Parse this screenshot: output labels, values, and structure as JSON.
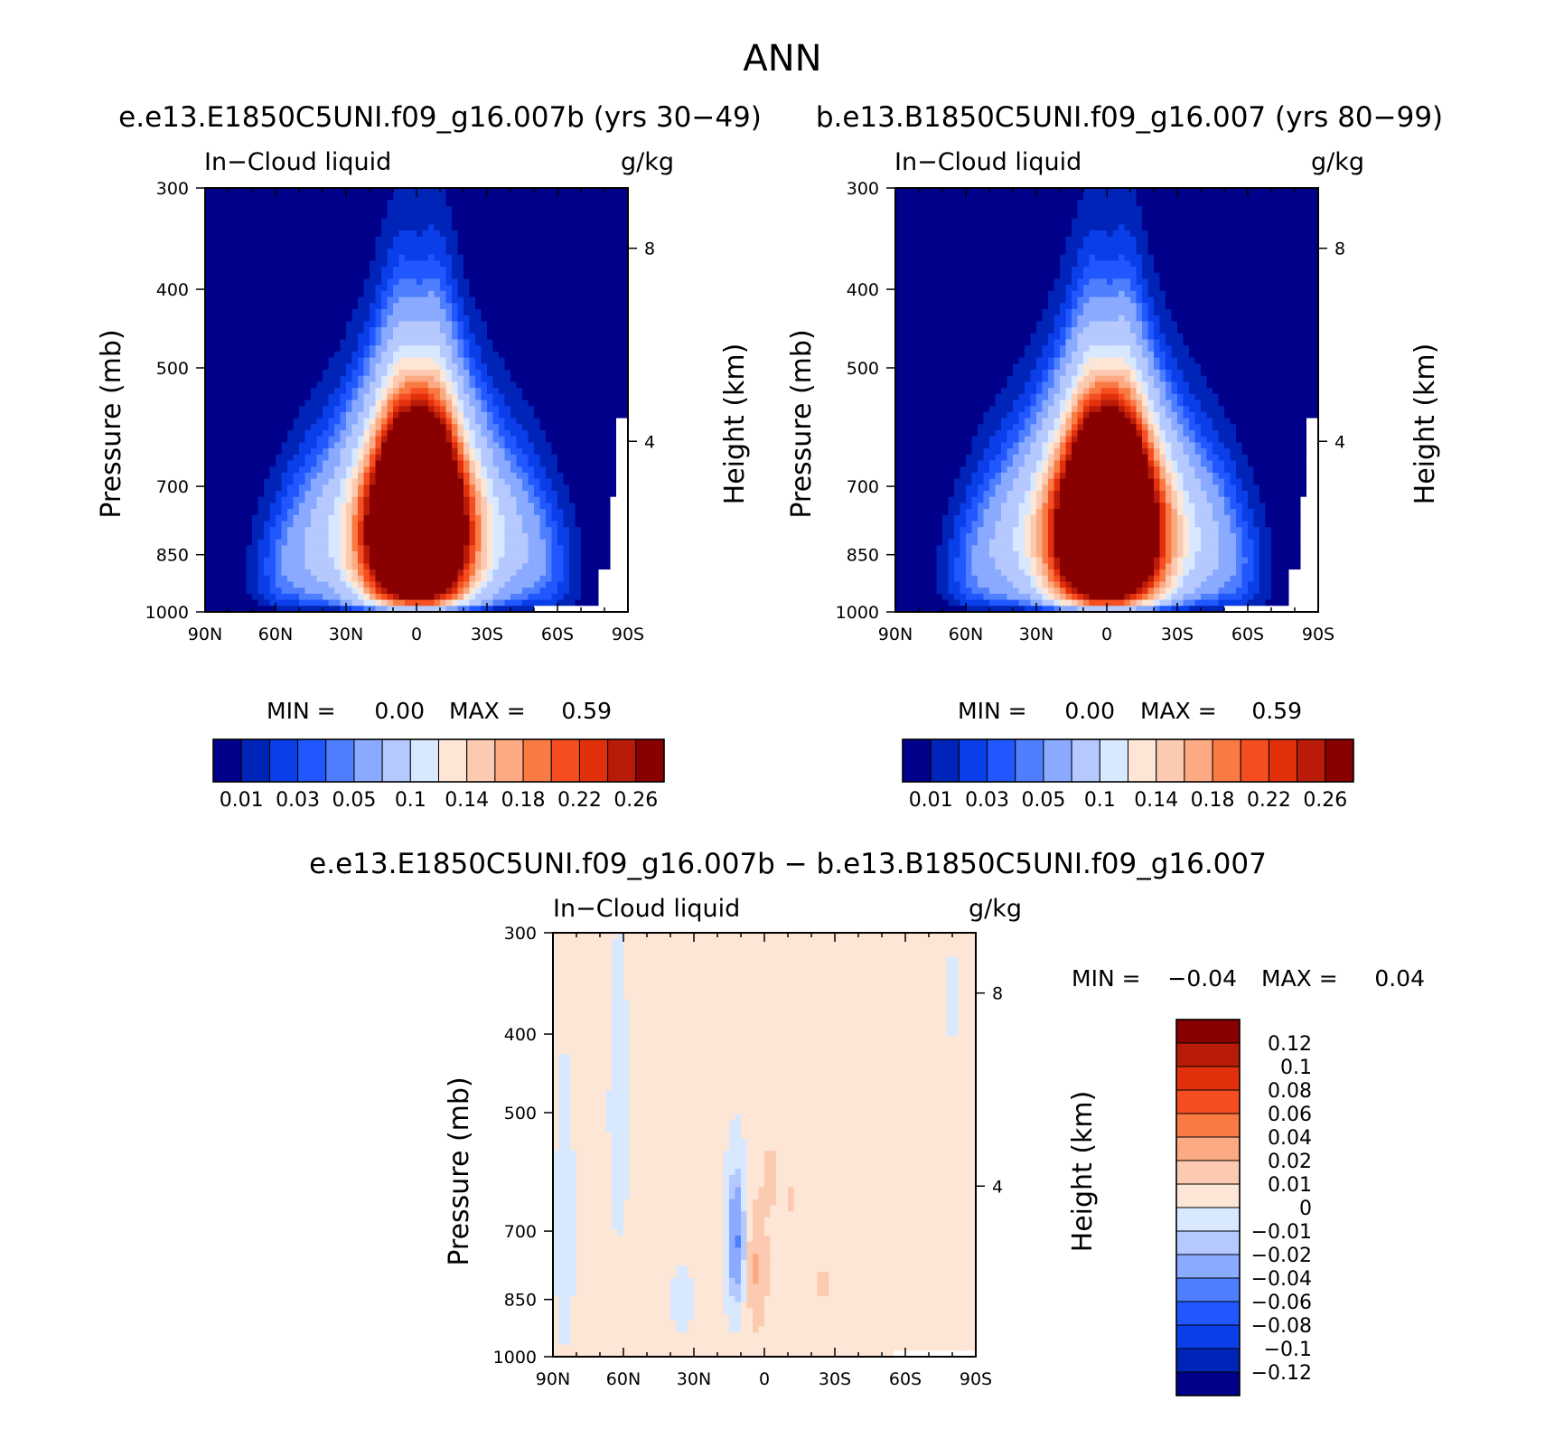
{
  "page_title": "ANN",
  "colors": {
    "panel_scale": [
      "#00008a",
      "#0024b8",
      "#0a3ee8",
      "#2057ff",
      "#4f7fff",
      "#8aaaff",
      "#b5c9ff",
      "#d8e8ff",
      "#fde6d6",
      "#fccab0",
      "#fbaa84",
      "#fa7a44",
      "#f64e20",
      "#e2300d",
      "#b81c08",
      "#880000"
    ],
    "diff_scale": [
      "#00008a",
      "#0024b8",
      "#0a3ee8",
      "#2057ff",
      "#4f7fff",
      "#8aaaff",
      "#b5c9ff",
      "#d8e8ff",
      "#fde6d6",
      "#fccab0",
      "#fbaa84",
      "#fa7a44",
      "#f64e20",
      "#e2300d",
      "#b81c08",
      "#880000"
    ],
    "missing": "#ffffff"
  },
  "chart_data": [
    {
      "type": "heatmap",
      "title": "e.e13.E1850C5UNI.f09_g16.007b (yrs 30−49)",
      "left_label": "In−Cloud liquid",
      "right_label": "g/kg",
      "xlabel": "",
      "ylabel": "Pressure (mb)",
      "ylabel_right": "Height (km)",
      "x_ticks": [
        "90N",
        "60N",
        "30N",
        "0",
        "30S",
        "60S",
        "90S"
      ],
      "y_ticks": [
        "300",
        "400",
        "500",
        "700",
        "850",
        "1000"
      ],
      "y_ticks_right": [
        "8",
        "4"
      ],
      "min_label": "MIN =",
      "min_value": "0.00",
      "max_label": "MAX =",
      "max_value": "0.59",
      "colorbar_labels": [
        "0.01",
        "0.03",
        "0.05",
        "0.1",
        "0.14",
        "0.18",
        "0.22",
        "0.26"
      ],
      "levels": [
        0.01,
        0.02,
        0.03,
        0.04,
        0.05,
        0.07,
        0.1,
        0.12,
        0.14,
        0.16,
        0.18,
        0.2,
        0.22,
        0.24,
        0.26
      ],
      "xlim": [
        -90,
        90
      ],
      "ylim": [
        1000,
        300
      ]
    },
    {
      "type": "heatmap",
      "title": "b.e13.B1850C5UNI.f09_g16.007 (yrs 80−99)",
      "left_label": "In−Cloud liquid",
      "right_label": "g/kg",
      "xlabel": "",
      "ylabel": "Pressure (mb)",
      "ylabel_right": "Height (km)",
      "x_ticks": [
        "90N",
        "60N",
        "30N",
        "0",
        "30S",
        "60S",
        "90S"
      ],
      "y_ticks": [
        "300",
        "400",
        "500",
        "700",
        "850",
        "1000"
      ],
      "y_ticks_right": [
        "8",
        "4"
      ],
      "min_label": "MIN =",
      "min_value": "0.00",
      "max_label": "MAX =",
      "max_value": "0.59",
      "colorbar_labels": [
        "0.01",
        "0.03",
        "0.05",
        "0.1",
        "0.14",
        "0.18",
        "0.22",
        "0.26"
      ],
      "levels": [
        0.01,
        0.02,
        0.03,
        0.04,
        0.05,
        0.07,
        0.1,
        0.12,
        0.14,
        0.16,
        0.18,
        0.2,
        0.22,
        0.24,
        0.26
      ],
      "xlim": [
        -90,
        90
      ],
      "ylim": [
        1000,
        300
      ]
    },
    {
      "type": "heatmap",
      "title": "e.e13.E1850C5UNI.f09_g16.007b − b.e13.B1850C5UNI.f09_g16.007",
      "left_label": "In−Cloud liquid",
      "right_label": "g/kg",
      "xlabel": "",
      "ylabel": "Pressure (mb)",
      "ylabel_right": "Height (km)",
      "x_ticks": [
        "90N",
        "60N",
        "30N",
        "0",
        "30S",
        "60S",
        "90S"
      ],
      "y_ticks": [
        "300",
        "400",
        "500",
        "700",
        "850",
        "1000"
      ],
      "y_ticks_right": [
        "8",
        "4"
      ],
      "min_label": "MIN =",
      "min_value": "−0.04",
      "max_label": "MAX =",
      "max_value": "0.04",
      "colorbar_labels": [
        "0.12",
        "0.1",
        "0.08",
        "0.06",
        "0.04",
        "0.02",
        "0.01",
        "0",
        "−0.01",
        "−0.02",
        "−0.04",
        "−0.06",
        "−0.08",
        "−0.1",
        "−0.12"
      ],
      "levels": [
        -0.12,
        -0.1,
        -0.08,
        -0.06,
        -0.04,
        -0.02,
        -0.01,
        0,
        0.01,
        0.02,
        0.04,
        0.06,
        0.08,
        0.1,
        0.12
      ],
      "xlim": [
        -90,
        90
      ],
      "ylim": [
        1000,
        300
      ]
    }
  ]
}
